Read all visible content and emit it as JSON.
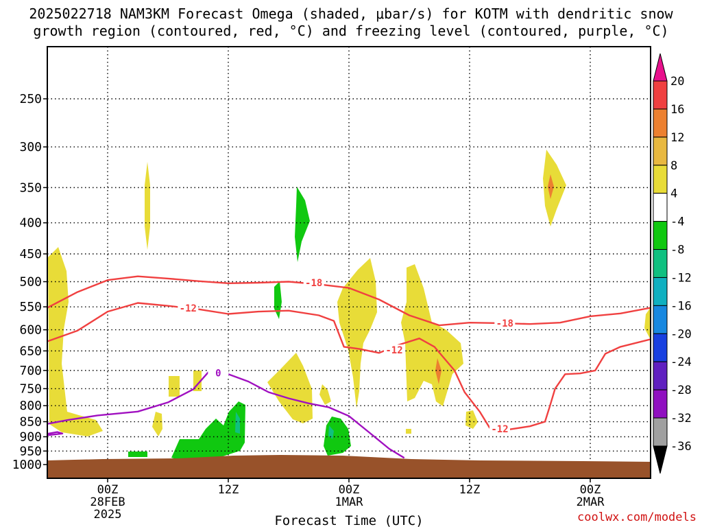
{
  "title_line1": "2025022718 NAM3KM Forecast Omega (shaded, μbar/s) for KOTM with dendritic snow",
  "title_line2": "growth region (contoured, red, °C) and freezing level (contoured, purple, °C)",
  "credit": "coolwx.com/models",
  "chart_data": {
    "type": "time-height cross section",
    "title": "2025022718 NAM3KM Forecast Omega (shaded, μbar/s) for KOTM with dendritic snow growth region (contoured, red, °C) and freezing level (contoured, purple, °C)",
    "xlabel": "Forecast Time (UTC)",
    "ylabel": "",
    "x_ticks": [
      {
        "label": "00Z",
        "sub": "28FEB",
        "sub2": "2025",
        "hour": 6
      },
      {
        "label": "12Z",
        "sub": "",
        "sub2": "",
        "hour": 18
      },
      {
        "label": "00Z",
        "sub": "1MAR",
        "sub2": "",
        "hour": 30
      },
      {
        "label": "12Z",
        "sub": "",
        "sub2": "",
        "hour": 42
      },
      {
        "label": "00Z",
        "sub": "2MAR",
        "sub2": "",
        "hour": 54
      }
    ],
    "xlim_hours": [
      0,
      60
    ],
    "y_levels_hpa": [
      250,
      300,
      350,
      400,
      450,
      500,
      550,
      600,
      650,
      700,
      750,
      800,
      850,
      900,
      950,
      1000
    ],
    "ylim_hpa": [
      1000,
      200
    ],
    "grid": "dotted",
    "colorbar": {
      "unit": "μbar/s",
      "labels": [
        "20",
        "16",
        "12",
        "8",
        "4",
        "-4",
        "-8",
        "-12",
        "-16",
        "-20",
        "-24",
        "-28",
        "-32",
        "-36"
      ],
      "colors": [
        "#e8108c",
        "#f04040",
        "#ec8030",
        "#e8b840",
        "#e8dc38",
        "#ffffff",
        "#10c810",
        "#10c080",
        "#10b0c0",
        "#1888e0",
        "#1840e0",
        "#6020c0",
        "#9010c0",
        "#a0a0a0",
        "#000000"
      ]
    },
    "contours": [
      {
        "name": "-18",
        "color": "#f04040",
        "points": [
          [
            0,
            552
          ],
          [
            3,
            520
          ],
          [
            6,
            497
          ],
          [
            9,
            490
          ],
          [
            12,
            494
          ],
          [
            15,
            499
          ],
          [
            18,
            503
          ],
          [
            21,
            502
          ],
          [
            24,
            500
          ],
          [
            27,
            505
          ],
          [
            30,
            512
          ],
          [
            33,
            535
          ],
          [
            36,
            568
          ],
          [
            39,
            590
          ],
          [
            42,
            584
          ],
          [
            45,
            585
          ],
          [
            48,
            587
          ],
          [
            51,
            584
          ],
          [
            54,
            570
          ],
          [
            57,
            564
          ],
          [
            60,
            552
          ]
        ]
      },
      {
        "name": "-12",
        "color": "#f04040",
        "points": [
          [
            0,
            627
          ],
          [
            3,
            602
          ],
          [
            6,
            560
          ],
          [
            9,
            542
          ],
          [
            12,
            548
          ],
          [
            15,
            555
          ],
          [
            18,
            565
          ],
          [
            21,
            560
          ],
          [
            24,
            558
          ],
          [
            27,
            568
          ],
          [
            28.5,
            580
          ],
          [
            29.5,
            640
          ],
          [
            31,
            645
          ],
          [
            33,
            655
          ],
          [
            35,
            635
          ],
          [
            37,
            620
          ],
          [
            38.5,
            640
          ],
          [
            40.5,
            700
          ],
          [
            41.5,
            760
          ],
          [
            43,
            818
          ],
          [
            44,
            870
          ],
          [
            46,
            875
          ],
          [
            48,
            865
          ],
          [
            49.5,
            850
          ],
          [
            50,
            800
          ],
          [
            50.5,
            750
          ],
          [
            51.5,
            710
          ],
          [
            53,
            708
          ],
          [
            54.5,
            700
          ],
          [
            55.5,
            657
          ],
          [
            57,
            640
          ],
          [
            60,
            622
          ]
        ]
      },
      {
        "name": "0",
        "color": "#a010c0",
        "points": [
          [
            0,
            857
          ],
          [
            2,
            845
          ],
          [
            5,
            830
          ],
          [
            9,
            818
          ],
          [
            12,
            790
          ],
          [
            14.5,
            752
          ],
          [
            16,
            705
          ],
          [
            18,
            710
          ],
          [
            20,
            730
          ],
          [
            22,
            760
          ],
          [
            24,
            778
          ],
          [
            26,
            793
          ],
          [
            28,
            805
          ],
          [
            30,
            832
          ],
          [
            32,
            885
          ],
          [
            34,
            942
          ],
          [
            35.5,
            975
          ]
        ]
      },
      {
        "name": "0",
        "color": "#a010c0",
        "points": [
          [
            0,
            890
          ],
          [
            1,
            884
          ],
          [
            1.5,
            889
          ],
          [
            0,
            895
          ]
        ]
      }
    ]
  }
}
